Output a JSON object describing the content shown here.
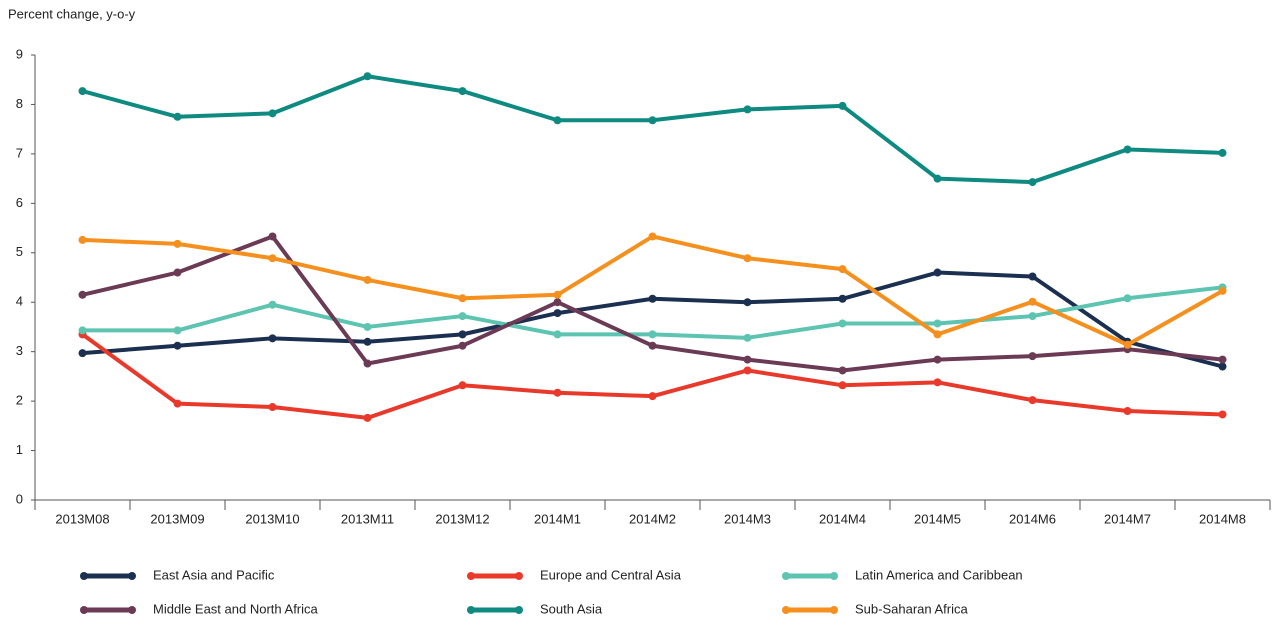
{
  "chart_data": {
    "type": "line",
    "y_label": "Percent change, y-o-y",
    "categories": [
      "2013M08",
      "2013M09",
      "2013M10",
      "2013M11",
      "2013M12",
      "2014M1",
      "2014M2",
      "2014M3",
      "2014M4",
      "2014M5",
      "2014M6",
      "2014M7",
      "2014M8"
    ],
    "ylim": [
      0,
      9
    ],
    "yticks": [
      0,
      1,
      2,
      3,
      4,
      5,
      6,
      7,
      8,
      9
    ],
    "grid": false,
    "legend": "bottom",
    "series": [
      {
        "name": "East Asia and Pacific",
        "color": "#1b2f50",
        "values": [
          2.97,
          3.12,
          3.27,
          3.2,
          3.35,
          3.78,
          4.07,
          4.0,
          4.07,
          4.6,
          4.52,
          3.2,
          2.7
        ]
      },
      {
        "name": "Europe and Central Asia",
        "color": "#e8392a",
        "values": [
          3.35,
          1.95,
          1.88,
          1.66,
          2.32,
          2.17,
          2.1,
          2.62,
          2.32,
          2.38,
          2.02,
          1.8,
          1.73
        ]
      },
      {
        "name": "Latin America and Caribbean",
        "color": "#5cc4b0",
        "values": [
          3.43,
          3.43,
          3.95,
          3.5,
          3.72,
          3.35,
          3.35,
          3.28,
          3.57,
          3.57,
          3.72,
          4.08,
          4.3
        ]
      },
      {
        "name": "Middle East and North Africa",
        "color": "#6b3a55",
        "values": [
          4.15,
          4.6,
          5.33,
          2.76,
          3.12,
          4.0,
          3.12,
          2.84,
          2.62,
          2.84,
          2.91,
          3.05,
          2.84
        ]
      },
      {
        "name": "South Asia",
        "color": "#0f8a80",
        "values": [
          8.27,
          7.75,
          7.82,
          8.57,
          8.27,
          7.68,
          7.68,
          7.9,
          7.97,
          6.5,
          6.43,
          7.09,
          7.02
        ]
      },
      {
        "name": "Sub-Saharan Africa",
        "color": "#f5901e",
        "values": [
          5.26,
          5.18,
          4.89,
          4.45,
          4.08,
          4.15,
          5.33,
          4.89,
          4.67,
          3.35,
          4.01,
          3.14,
          4.23
        ]
      }
    ]
  }
}
